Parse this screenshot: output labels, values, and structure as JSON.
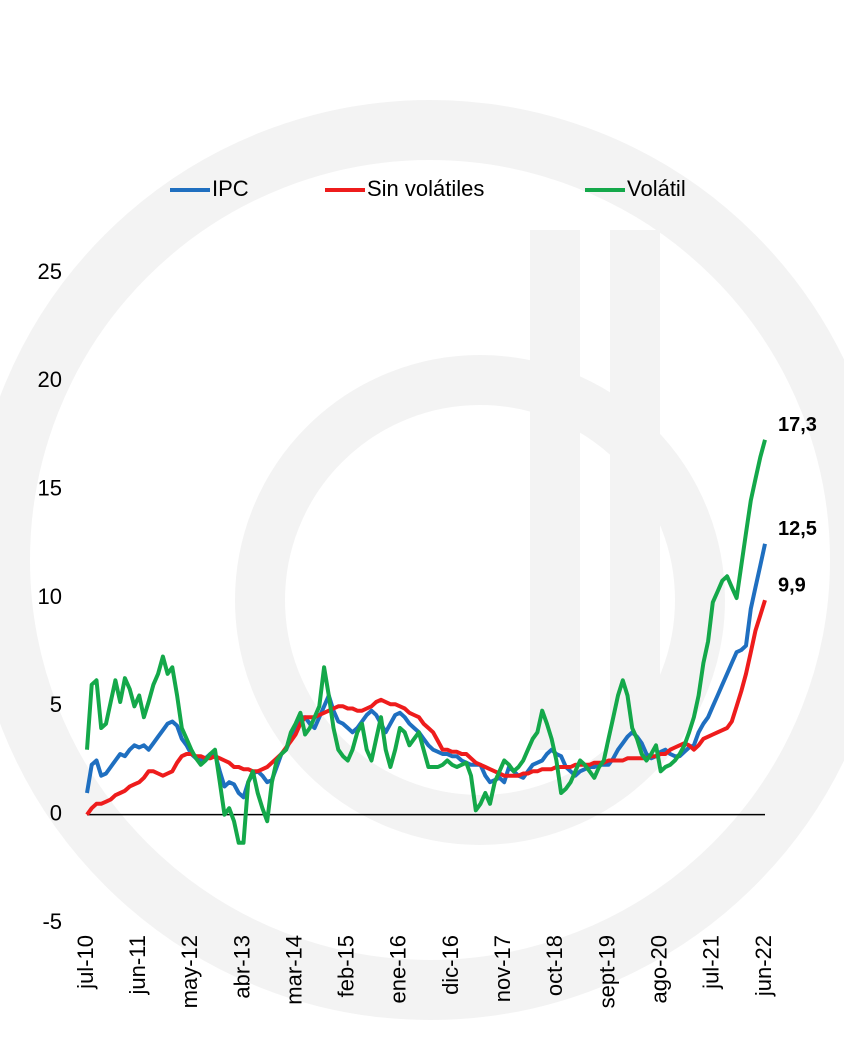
{
  "chart_data": {
    "type": "line",
    "categories": [
      "jul-10",
      null,
      null,
      null,
      null,
      null,
      null,
      null,
      null,
      null,
      null,
      "jun-11",
      null,
      null,
      null,
      null,
      null,
      null,
      null,
      null,
      null,
      null,
      "may-12",
      null,
      null,
      null,
      null,
      null,
      null,
      null,
      null,
      null,
      null,
      "abr-13",
      null,
      null,
      null,
      null,
      null,
      null,
      null,
      null,
      null,
      null,
      "mar-14",
      null,
      null,
      null,
      null,
      null,
      null,
      null,
      null,
      null,
      null,
      "feb-15",
      null,
      null,
      null,
      null,
      null,
      null,
      null,
      null,
      null,
      null,
      "ene-16",
      null,
      null,
      null,
      null,
      null,
      null,
      null,
      null,
      null,
      null,
      "dic-16",
      null,
      null,
      null,
      null,
      null,
      null,
      null,
      null,
      null,
      null,
      "nov-17",
      null,
      null,
      null,
      null,
      null,
      null,
      null,
      null,
      null,
      null,
      "oct-18",
      null,
      null,
      null,
      null,
      null,
      null,
      null,
      null,
      null,
      null,
      "sept-19",
      null,
      null,
      null,
      null,
      null,
      null,
      null,
      null,
      null,
      null,
      "ago-20",
      null,
      null,
      null,
      null,
      null,
      null,
      null,
      null,
      null,
      null,
      "jul-21",
      null,
      null,
      null,
      null,
      null,
      null,
      null,
      null,
      null,
      null,
      "jun-22"
    ],
    "series": [
      {
        "name": "IPC",
        "color": "#1f6fc0",
        "values": [
          1.0,
          2.3,
          2.5,
          1.8,
          1.9,
          2.2,
          2.5,
          2.8,
          2.7,
          3.0,
          3.2,
          3.1,
          3.2,
          3.0,
          3.3,
          3.6,
          3.9,
          4.2,
          4.3,
          4.1,
          3.5,
          3.2,
          2.8,
          2.6,
          2.5,
          2.6,
          2.8,
          2.8,
          2.0,
          1.3,
          1.5,
          1.4,
          1.0,
          0.8,
          1.5,
          1.9,
          2.0,
          1.8,
          1.5,
          1.6,
          2.2,
          2.8,
          3.0,
          3.5,
          4.0,
          4.5,
          4.5,
          4.2,
          4.0,
          4.5,
          5.0,
          5.5,
          4.8,
          4.3,
          4.2,
          4.0,
          3.8,
          4.0,
          4.3,
          4.6,
          4.8,
          4.6,
          4.2,
          3.8,
          4.2,
          4.6,
          4.7,
          4.5,
          4.2,
          4.0,
          3.8,
          3.5,
          3.2,
          3.0,
          2.9,
          2.8,
          2.8,
          2.7,
          2.7,
          2.5,
          2.4,
          2.3,
          2.3,
          2.3,
          1.8,
          1.5,
          1.6,
          1.7,
          1.5,
          2.2,
          2.0,
          1.8,
          1.7,
          2.0,
          2.3,
          2.4,
          2.5,
          2.8,
          3.0,
          2.8,
          2.7,
          2.2,
          2.0,
          1.8,
          2.0,
          2.1,
          2.2,
          2.2,
          2.3,
          2.3,
          2.3,
          2.6,
          3.0,
          3.3,
          3.6,
          3.8,
          3.6,
          3.3,
          2.8,
          2.6,
          2.7,
          2.9,
          3.0,
          2.8,
          2.7,
          2.7,
          2.9,
          3.1,
          3.2,
          3.8,
          4.2,
          4.5,
          5.0,
          5.5,
          6.0,
          6.5,
          7.0,
          7.5,
          7.6,
          7.8,
          9.5,
          10.5,
          11.5,
          12.5
        ],
        "value_labels": [
          null,
          null,
          null,
          null,
          null,
          null,
          null,
          null,
          null,
          null,
          null,
          null,
          null,
          null,
          null,
          null,
          null,
          null,
          null,
          null,
          null,
          null,
          null,
          null,
          null,
          null,
          null,
          null,
          null,
          null,
          null,
          null,
          null,
          null,
          null,
          null,
          null,
          null,
          null,
          null,
          null,
          null,
          null,
          null,
          null,
          null,
          null,
          null,
          null,
          null,
          null,
          null,
          null,
          null,
          null,
          null,
          null,
          null,
          null,
          null,
          null,
          null,
          null,
          null,
          null,
          null,
          null,
          null,
          null,
          null,
          null,
          null,
          null,
          null,
          null,
          null,
          null,
          null,
          null,
          null,
          null,
          null,
          null,
          null,
          null,
          null,
          null,
          null,
          null,
          null,
          null,
          null,
          null,
          null,
          null,
          null,
          null,
          null,
          null,
          null,
          null,
          null,
          null,
          null,
          null,
          null,
          null,
          null,
          null,
          null,
          null,
          null,
          null,
          null,
          null,
          null,
          null,
          null,
          null,
          null,
          null,
          null,
          null,
          null,
          null,
          null,
          null,
          null,
          null,
          null,
          null,
          null,
          null,
          null,
          null,
          null,
          null,
          null,
          null,
          null,
          null,
          null,
          null,
          "12,5"
        ]
      },
      {
        "name": "Sin volátiles",
        "color": "#ee1c1c",
        "values": [
          0.0,
          0.3,
          0.5,
          0.5,
          0.6,
          0.7,
          0.9,
          1.0,
          1.1,
          1.3,
          1.4,
          1.5,
          1.7,
          2.0,
          2.0,
          1.9,
          1.8,
          1.9,
          2.0,
          2.4,
          2.7,
          2.8,
          2.8,
          2.7,
          2.7,
          2.6,
          2.6,
          2.7,
          2.6,
          2.5,
          2.4,
          2.2,
          2.2,
          2.1,
          2.1,
          2.0,
          2.0,
          2.1,
          2.2,
          2.4,
          2.6,
          2.8,
          3.1,
          3.4,
          3.7,
          4.2,
          4.5,
          4.5,
          4.5,
          4.6,
          4.7,
          4.8,
          4.9,
          5.0,
          5.0,
          4.9,
          4.9,
          4.8,
          4.8,
          4.9,
          5.0,
          5.2,
          5.3,
          5.2,
          5.1,
          5.1,
          5.0,
          4.9,
          4.7,
          4.6,
          4.5,
          4.2,
          4.0,
          3.8,
          3.4,
          3.0,
          3.0,
          2.9,
          2.9,
          2.8,
          2.8,
          2.6,
          2.4,
          2.3,
          2.2,
          2.1,
          2.0,
          1.9,
          1.8,
          1.8,
          1.8,
          1.8,
          1.9,
          1.9,
          2.0,
          2.0,
          2.1,
          2.1,
          2.1,
          2.2,
          2.2,
          2.2,
          2.2,
          2.3,
          2.3,
          2.3,
          2.3,
          2.4,
          2.4,
          2.4,
          2.5,
          2.5,
          2.5,
          2.5,
          2.6,
          2.6,
          2.6,
          2.6,
          2.6,
          2.7,
          2.7,
          2.8,
          2.8,
          3.0,
          3.1,
          3.2,
          3.3,
          3.2,
          3.0,
          3.2,
          3.5,
          3.6,
          3.7,
          3.8,
          3.9,
          4.0,
          4.3,
          5.0,
          5.7,
          6.5,
          7.5,
          8.5,
          9.2,
          9.9
        ],
        "value_labels": [
          null,
          null,
          null,
          null,
          null,
          null,
          null,
          null,
          null,
          null,
          null,
          null,
          null,
          null,
          null,
          null,
          null,
          null,
          null,
          null,
          null,
          null,
          null,
          null,
          null,
          null,
          null,
          null,
          null,
          null,
          null,
          null,
          null,
          null,
          null,
          null,
          null,
          null,
          null,
          null,
          null,
          null,
          null,
          null,
          null,
          null,
          null,
          null,
          null,
          null,
          null,
          null,
          null,
          null,
          null,
          null,
          null,
          null,
          null,
          null,
          null,
          null,
          null,
          null,
          null,
          null,
          null,
          null,
          null,
          null,
          null,
          null,
          null,
          null,
          null,
          null,
          null,
          null,
          null,
          null,
          null,
          null,
          null,
          null,
          null,
          null,
          null,
          null,
          null,
          null,
          null,
          null,
          null,
          null,
          null,
          null,
          null,
          null,
          null,
          null,
          null,
          null,
          null,
          null,
          null,
          null,
          null,
          null,
          null,
          null,
          null,
          null,
          null,
          null,
          null,
          null,
          null,
          null,
          null,
          null,
          null,
          null,
          null,
          null,
          null,
          null,
          null,
          null,
          null,
          null,
          null,
          null,
          null,
          null,
          null,
          null,
          null,
          null,
          null,
          null,
          null,
          null,
          null,
          "9,9"
        ]
      },
      {
        "name": "Volátil",
        "color": "#14a84a",
        "values": [
          3.0,
          6.0,
          6.2,
          4.0,
          4.2,
          5.2,
          6.2,
          5.2,
          6.3,
          5.8,
          5.0,
          5.5,
          4.5,
          5.2,
          6.0,
          6.5,
          7.3,
          6.5,
          6.8,
          5.5,
          4.0,
          3.5,
          3.0,
          2.6,
          2.3,
          2.5,
          2.8,
          3.0,
          1.5,
          0.0,
          0.3,
          -0.3,
          -1.3,
          -1.3,
          1.5,
          2.0,
          1.0,
          0.3,
          -0.3,
          1.5,
          2.5,
          2.8,
          3.0,
          3.8,
          4.2,
          4.7,
          3.7,
          4.0,
          4.5,
          5.0,
          6.8,
          5.5,
          4.0,
          3.0,
          2.7,
          2.5,
          3.0,
          3.8,
          4.2,
          3.0,
          2.5,
          3.5,
          4.5,
          3.0,
          2.2,
          3.0,
          4.0,
          3.8,
          3.2,
          3.5,
          3.8,
          3.0,
          2.2,
          2.2,
          2.2,
          2.3,
          2.5,
          2.3,
          2.2,
          2.3,
          2.4,
          1.8,
          0.2,
          0.5,
          1.0,
          0.5,
          1.5,
          2.0,
          2.5,
          2.3,
          2.0,
          2.2,
          2.5,
          3.0,
          3.5,
          3.8,
          4.8,
          4.2,
          3.5,
          2.5,
          1.0,
          1.2,
          1.5,
          2.0,
          2.5,
          2.3,
          2.0,
          1.7,
          2.2,
          2.5,
          3.5,
          4.5,
          5.5,
          6.2,
          5.5,
          4.0,
          3.5,
          2.8,
          2.5,
          2.8,
          3.2,
          2.0,
          2.2,
          2.3,
          2.5,
          2.8,
          3.2,
          3.8,
          4.5,
          5.5,
          7.0,
          8.0,
          9.8,
          10.3,
          10.8,
          11.0,
          10.5,
          10.0,
          11.5,
          13.0,
          14.5,
          15.5,
          16.5,
          17.3
        ],
        "value_labels": [
          null,
          null,
          null,
          null,
          null,
          null,
          null,
          null,
          null,
          null,
          null,
          null,
          null,
          null,
          null,
          null,
          null,
          null,
          null,
          null,
          null,
          null,
          null,
          null,
          null,
          null,
          null,
          null,
          null,
          null,
          null,
          null,
          null,
          null,
          null,
          null,
          null,
          null,
          null,
          null,
          null,
          null,
          null,
          null,
          null,
          null,
          null,
          null,
          null,
          null,
          null,
          null,
          null,
          null,
          null,
          null,
          null,
          null,
          null,
          null,
          null,
          null,
          null,
          null,
          null,
          null,
          null,
          null,
          null,
          null,
          null,
          null,
          null,
          null,
          null,
          null,
          null,
          null,
          null,
          null,
          null,
          null,
          null,
          null,
          null,
          null,
          null,
          null,
          null,
          null,
          null,
          null,
          null,
          null,
          null,
          null,
          null,
          null,
          null,
          null,
          null,
          null,
          null,
          null,
          null,
          null,
          null,
          null,
          null,
          null,
          null,
          null,
          null,
          null,
          null,
          null,
          null,
          null,
          null,
          null,
          null,
          null,
          null,
          null,
          null,
          null,
          null,
          null,
          null,
          null,
          null,
          null,
          null,
          null,
          null,
          null,
          null,
          null,
          null,
          null,
          null,
          null,
          null,
          "17,3"
        ]
      }
    ],
    "ylim": [
      -5,
      25
    ],
    "yticks": [
      -5,
      0,
      5,
      10,
      15,
      20,
      25
    ],
    "grid": false,
    "legend": "top"
  }
}
